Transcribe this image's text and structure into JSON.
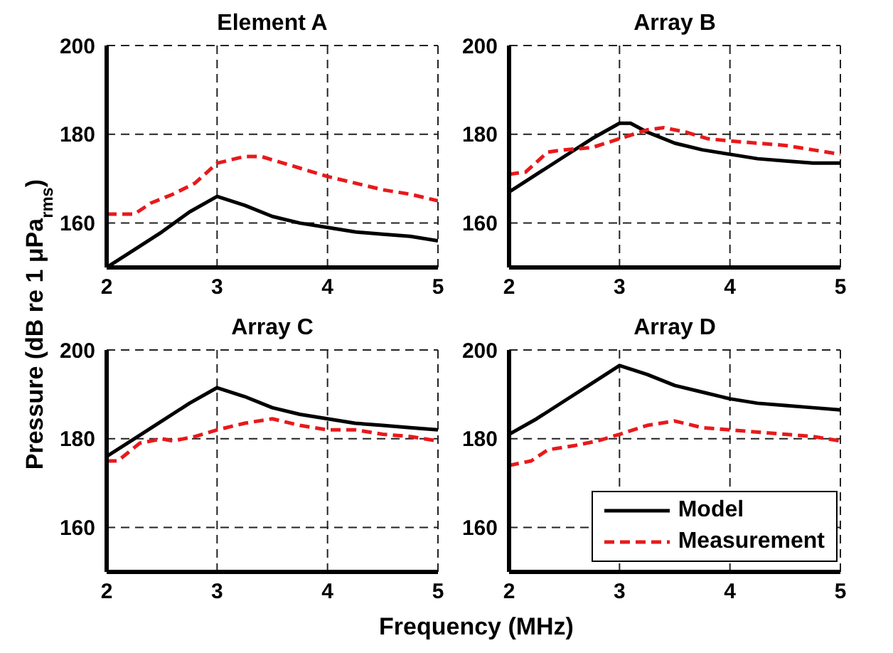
{
  "chart_data": [
    {
      "type": "line",
      "title": "Element A",
      "xlabel": "Frequency (MHz)",
      "ylabel": "Pressure (dB re 1 μPa$_{rms}$)",
      "xlim": [
        2,
        5
      ],
      "xticks": [
        2,
        3,
        4,
        5
      ],
      "ylim": [
        150,
        200
      ],
      "yticks": [
        160,
        180,
        200
      ],
      "grid": true,
      "legend": false,
      "marker": "none",
      "series": [
        {
          "color": "#000000",
          "line_style": "solid",
          "x": [
            2,
            2.25,
            2.5,
            2.75,
            3,
            3.25,
            3.5,
            3.75,
            4,
            4.25,
            4.5,
            4.75,
            5
          ],
          "values": [
            150,
            154,
            158,
            162.5,
            166,
            164,
            161.5,
            160,
            159,
            158,
            157.5,
            157,
            156
          ]
        },
        {
          "color": "#e8191b",
          "line_style": "dashed",
          "x": [
            2,
            2.25,
            2.4,
            2.6,
            2.8,
            3,
            3.25,
            3.4,
            3.6,
            3.8,
            4,
            4.25,
            4.5,
            4.75,
            5
          ],
          "values": [
            162,
            162,
            164.5,
            166.5,
            169,
            173.5,
            175,
            175,
            173.5,
            172,
            170.5,
            169,
            167.5,
            166.5,
            165
          ]
        }
      ]
    },
    {
      "type": "line",
      "title": "Array B",
      "xlim": [
        2,
        5
      ],
      "xticks": [
        2,
        3,
        4,
        5
      ],
      "ylim": [
        150,
        200
      ],
      "yticks": [
        160,
        180,
        200
      ],
      "grid": true,
      "legend": false,
      "marker": "none",
      "series": [
        {
          "color": "#000000",
          "line_style": "solid",
          "x": [
            2,
            2.25,
            2.5,
            2.75,
            3,
            3.1,
            3.25,
            3.5,
            3.75,
            4,
            4.25,
            4.5,
            4.75,
            5
          ],
          "values": [
            167,
            171,
            175,
            179,
            182.5,
            182.5,
            180.5,
            178,
            176.5,
            175.5,
            174.5,
            174,
            173.5,
            173.5
          ]
        },
        {
          "color": "#e8191b",
          "line_style": "dashed",
          "x": [
            2,
            2.15,
            2.35,
            2.5,
            2.75,
            3,
            3.25,
            3.4,
            3.6,
            3.8,
            4,
            4.25,
            4.5,
            4.75,
            5
          ],
          "values": [
            171,
            171.5,
            176,
            176.5,
            177,
            179,
            181,
            181.5,
            180.5,
            179,
            178.5,
            178,
            177.5,
            176.5,
            175.5
          ]
        }
      ]
    },
    {
      "type": "line",
      "title": "Array C",
      "xlim": [
        2,
        5
      ],
      "xticks": [
        2,
        3,
        4,
        5
      ],
      "ylim": [
        150,
        200
      ],
      "yticks": [
        160,
        180,
        200
      ],
      "grid": true,
      "legend": false,
      "marker": "none",
      "series": [
        {
          "color": "#000000",
          "line_style": "solid",
          "x": [
            2,
            2.25,
            2.5,
            2.75,
            3,
            3.25,
            3.5,
            3.75,
            4,
            4.25,
            4.5,
            4.75,
            5
          ],
          "values": [
            176,
            180,
            184,
            188,
            191.5,
            189.5,
            187,
            185.5,
            184.5,
            183.5,
            183,
            182.5,
            182
          ]
        },
        {
          "color": "#e8191b",
          "line_style": "dashed",
          "x": [
            2,
            2.1,
            2.3,
            2.5,
            2.6,
            2.8,
            3,
            3.25,
            3.5,
            3.75,
            4,
            4.25,
            4.5,
            4.75,
            5
          ],
          "values": [
            175,
            175,
            179,
            180,
            179.5,
            180.5,
            182,
            183.5,
            184.5,
            183,
            182,
            182,
            181,
            180.5,
            179.5
          ]
        }
      ]
    },
    {
      "type": "line",
      "title": "Array D",
      "xlim": [
        2,
        5
      ],
      "xticks": [
        2,
        3,
        4,
        5
      ],
      "ylim": [
        150,
        200
      ],
      "yticks": [
        160,
        180,
        200
      ],
      "grid": true,
      "legend": "bottom right",
      "marker": "none",
      "series": [
        {
          "name": "Model",
          "color": "#000000",
          "line_style": "solid",
          "x": [
            2,
            2.25,
            2.5,
            2.75,
            3,
            3.25,
            3.5,
            3.75,
            4,
            4.25,
            4.5,
            4.75,
            5
          ],
          "values": [
            181,
            184.5,
            188.5,
            192.5,
            196.5,
            194.5,
            192,
            190.5,
            189,
            188,
            187.5,
            187,
            186.5
          ]
        },
        {
          "name": "Measurement",
          "color": "#e8191b",
          "line_style": "dashed",
          "x": [
            2,
            2.2,
            2.35,
            2.6,
            2.8,
            3,
            3.25,
            3.5,
            3.75,
            4,
            4.25,
            4.5,
            4.75,
            5
          ],
          "values": [
            174,
            175,
            177.5,
            178.5,
            179.5,
            181,
            183,
            184,
            182.5,
            182,
            181.5,
            181,
            180.5,
            179.5
          ]
        }
      ]
    }
  ]
}
